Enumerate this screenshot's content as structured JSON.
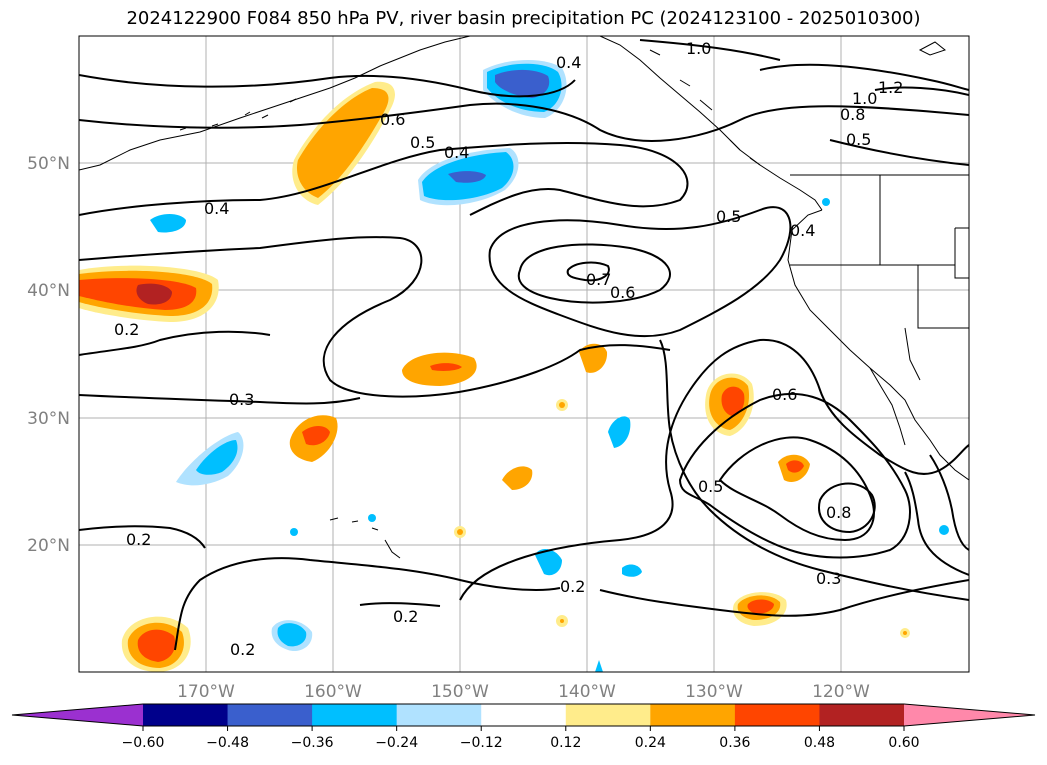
{
  "title": "2024122900 F084 850 hPa PV, river basin precipitation PC (2024123100 - 2025010300)",
  "axes": {
    "lon_ticks": [
      "170°W",
      "160°W",
      "150°W",
      "140°W",
      "130°W",
      "120°W"
    ],
    "lat_ticks": [
      "20°N",
      "30°N",
      "40°N",
      "50°N"
    ]
  },
  "colorbar": {
    "ticks": [
      "−0.60",
      "−0.48",
      "−0.36",
      "−0.24",
      "−0.12",
      "0.12",
      "0.24",
      "0.36",
      "0.48",
      "0.60"
    ],
    "colors": [
      "#9b30d0",
      "#00008b",
      "#3a5fcd",
      "#00bfff",
      "#b0e2ff",
      "#ffffff",
      "#ffec8b",
      "#ffa500",
      "#ff4500",
      "#b22222",
      "#ff88aa"
    ]
  },
  "contour_labels": [
    "1.0",
    "1.2",
    "1.0",
    "0.8",
    "0.5",
    "0.4",
    "0.6",
    "0.5",
    "0.4",
    "0.4",
    "0.5",
    "0.4",
    "0.7",
    "0.6",
    "0.2",
    "0.3",
    "0.6",
    "0.5",
    "0.8",
    "0.3",
    "0.2",
    "0.2",
    "0.2",
    "0.2"
  ]
}
